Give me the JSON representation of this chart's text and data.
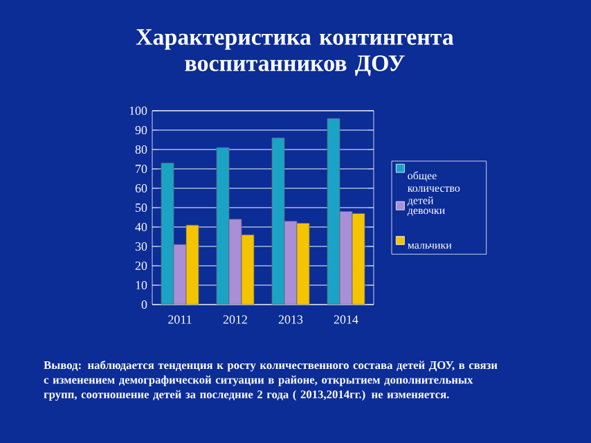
{
  "chart_data": {
    "type": "bar",
    "title": "Характеристика контингента воспитанников ДОУ",
    "categories": [
      "2011",
      "2012",
      "2013",
      "2014"
    ],
    "series": [
      {
        "name": "общее количество детей",
        "color": "#1ba3c6",
        "values": [
          73,
          81,
          86,
          96
        ]
      },
      {
        "name": "девочки",
        "color": "#a98fd8",
        "values": [
          31,
          44,
          43,
          48
        ]
      },
      {
        "name": "мальчики",
        "color": "#f5c400",
        "values": [
          41,
          36,
          42,
          47
        ]
      }
    ],
    "ylim": [
      0,
      100
    ],
    "yticks": [
      0,
      10,
      20,
      30,
      40,
      50,
      60,
      70,
      80,
      90,
      100
    ],
    "grid": "y",
    "legend": "right",
    "annotations": [
      "Вывод: наблюдается тенденция к росту количественного состава детей ДОУ, в связи с изменением демографической ситуации в районе, открытием  дополнительных групп, соотношение детей за последние 2 года ( 2013,2014гг.) не изменяется."
    ]
  }
}
